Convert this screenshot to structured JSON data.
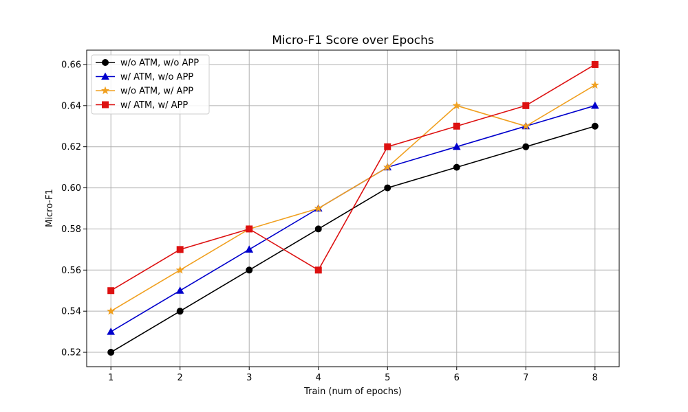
{
  "chart_data": {
    "type": "line",
    "title": "Micro-F1 Score over Epochs",
    "xlabel": "Train (num of epochs)",
    "ylabel": "Micro-F1",
    "x": [
      1,
      2,
      3,
      4,
      5,
      6,
      7,
      8
    ],
    "xlim": [
      0.65,
      8.35
    ],
    "ylim": [
      0.513,
      0.667
    ],
    "yticks": [
      0.52,
      0.54,
      0.56,
      0.58,
      0.6,
      0.62,
      0.64,
      0.66
    ],
    "ytick_labels": [
      "0.52",
      "0.54",
      "0.56",
      "0.58",
      "0.60",
      "0.62",
      "0.64",
      "0.66"
    ],
    "xtick_labels": [
      "1",
      "2",
      "3",
      "4",
      "5",
      "6",
      "7",
      "8"
    ],
    "grid": true,
    "legend_position": "top-left",
    "series": [
      {
        "name": "w/o ATM, w/o APP",
        "color": "#000000",
        "marker": "circle",
        "values": [
          0.52,
          0.54,
          0.56,
          0.58,
          0.6,
          0.61,
          0.62,
          0.63
        ]
      },
      {
        "name": "w/ ATM, w/o APP",
        "color": "#0000cc",
        "marker": "triangle",
        "values": [
          0.53,
          0.55,
          0.57,
          0.59,
          0.61,
          0.62,
          0.63,
          0.64
        ]
      },
      {
        "name": "w/o ATM, w/ APP",
        "color": "#f0a020",
        "marker": "star",
        "values": [
          0.54,
          0.56,
          0.58,
          0.59,
          0.61,
          0.64,
          0.63,
          0.65
        ]
      },
      {
        "name": "w/ ATM, w/ APP",
        "color": "#dd1111",
        "marker": "square",
        "values": [
          0.55,
          0.57,
          0.58,
          0.56,
          0.62,
          0.63,
          0.64,
          0.66
        ]
      }
    ]
  }
}
